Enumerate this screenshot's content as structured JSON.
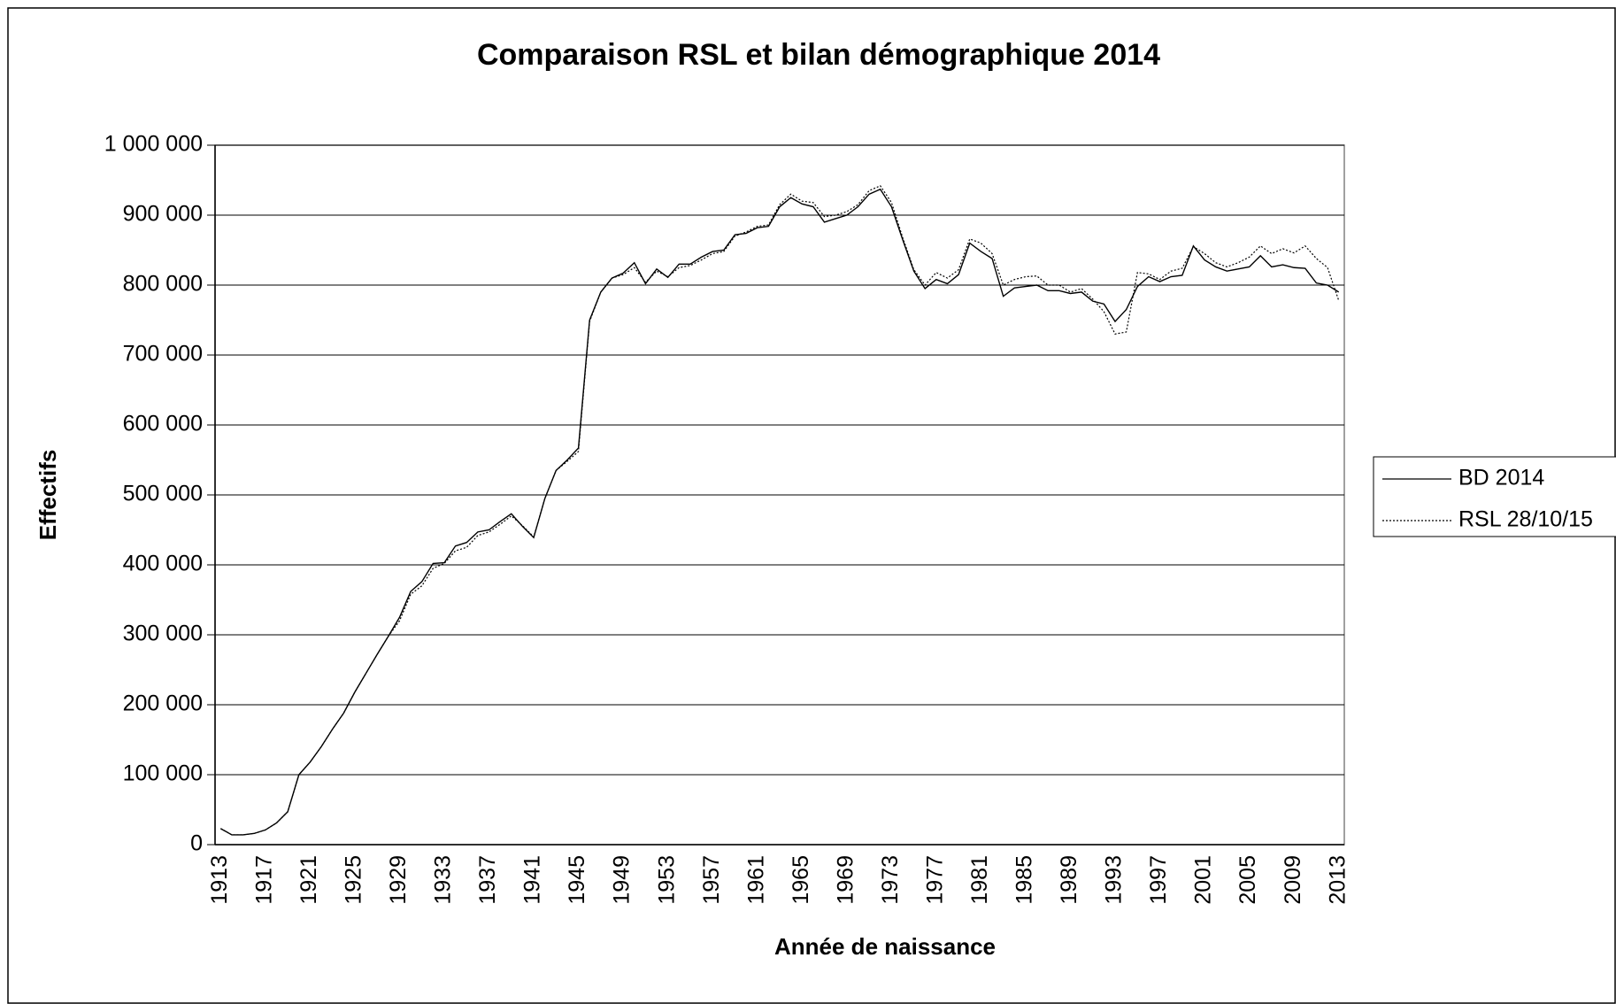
{
  "chart_data": {
    "type": "line",
    "title": "Comparaison RSL et bilan démographique 2014",
    "x_label": "Année de naissance",
    "y_label": "Effectifs",
    "categories": [
      "1913",
      null,
      null,
      null,
      "1917",
      null,
      null,
      null,
      "1921",
      null,
      null,
      null,
      "1925",
      null,
      null,
      null,
      "1929",
      null,
      null,
      null,
      "1933",
      null,
      null,
      null,
      "1937",
      null,
      null,
      null,
      "1941",
      null,
      null,
      null,
      "1945",
      null,
      null,
      null,
      "1949",
      null,
      null,
      null,
      "1953",
      null,
      null,
      null,
      "1957",
      null,
      null,
      null,
      "1961",
      null,
      null,
      null,
      "1965",
      null,
      null,
      null,
      "1969",
      null,
      null,
      null,
      "1973",
      null,
      null,
      null,
      "1977",
      null,
      null,
      null,
      "1981",
      null,
      null,
      null,
      "1985",
      null,
      null,
      null,
      "1989",
      null,
      null,
      null,
      "1993",
      null,
      null,
      null,
      "1997",
      null,
      null,
      null,
      "2001",
      null,
      null,
      null,
      "2005",
      null,
      null,
      null,
      "2009",
      null,
      null,
      null,
      "2013"
    ],
    "series": [
      {
        "name": "BD 2014",
        "color": "#000000",
        "style": "solid",
        "values": [
          23000,
          14000,
          14000,
          16000,
          21000,
          31000,
          47000,
          100000,
          118000,
          140000,
          165000,
          188000,
          218000,
          245000,
          272000,
          298000,
          325000,
          362000,
          376000,
          402000,
          403000,
          427000,
          432000,
          447000,
          450000,
          462000,
          473000,
          455000,
          439000,
          495000,
          535000,
          550000,
          567000,
          750000,
          790000,
          810000,
          817000,
          832000,
          802000,
          823000,
          811000,
          830000,
          830000,
          840000,
          848000,
          850000,
          872000,
          874000,
          882000,
          884000,
          912000,
          925000,
          916000,
          912000,
          890000,
          895000,
          900000,
          912000,
          930000,
          937000,
          912000,
          865000,
          820000,
          795000,
          808000,
          802000,
          815000,
          860000,
          848000,
          838000,
          784000,
          796000,
          798000,
          800000,
          792000,
          792000,
          788000,
          790000,
          777000,
          773000,
          748000,
          765000,
          798000,
          812000,
          805000,
          812000,
          814000,
          856000,
          836000,
          826000,
          820000,
          823000,
          826000,
          842000,
          826000,
          829000,
          825000,
          824000,
          803000,
          800000,
          790000
        ]
      },
      {
        "name": "RSL 28/10/15",
        "color": "#000000",
        "style": "dotted",
        "values": [
          23000,
          14000,
          14000,
          16000,
          21000,
          31000,
          47000,
          100000,
          118000,
          140000,
          165000,
          188000,
          218000,
          245000,
          272000,
          298000,
          320000,
          358000,
          370000,
          395000,
          402000,
          420000,
          425000,
          442000,
          447000,
          458000,
          470000,
          456000,
          440000,
          495000,
          535000,
          548000,
          562000,
          748000,
          790000,
          810000,
          815000,
          825000,
          804000,
          820000,
          812000,
          825000,
          828000,
          836000,
          845000,
          848000,
          870000,
          876000,
          884000,
          886000,
          915000,
          930000,
          920000,
          918000,
          898000,
          900000,
          905000,
          915000,
          935000,
          942000,
          918000,
          868000,
          822000,
          800000,
          818000,
          810000,
          822000,
          866000,
          860000,
          845000,
          800000,
          808000,
          812000,
          813000,
          800000,
          800000,
          790000,
          795000,
          780000,
          762000,
          730000,
          733000,
          818000,
          816000,
          808000,
          820000,
          824000,
          855000,
          845000,
          832000,
          826000,
          832000,
          840000,
          856000,
          845000,
          852000,
          846000,
          856000,
          838000,
          825000,
          778000
        ]
      }
    ],
    "ylim": [
      0,
      1000000
    ],
    "yticks": [
      0,
      {
        "value": 100000,
        "label": "100 000"
      },
      {
        "value": 200000,
        "label": "200 000"
      },
      {
        "value": 300000,
        "label": "300 000"
      },
      {
        "value": 400000,
        "label": "400 000"
      },
      {
        "value": 500000,
        "label": "500 000"
      },
      {
        "value": 600000,
        "label": "600 000"
      },
      {
        "value": 700000,
        "label": "700 000"
      },
      {
        "value": 800000,
        "label": "800 000"
      },
      {
        "value": 900000,
        "label": "900 000"
      },
      {
        "value": 1000000,
        "label": "1 000 000"
      }
    ],
    "grid": true,
    "legend": "right"
  }
}
